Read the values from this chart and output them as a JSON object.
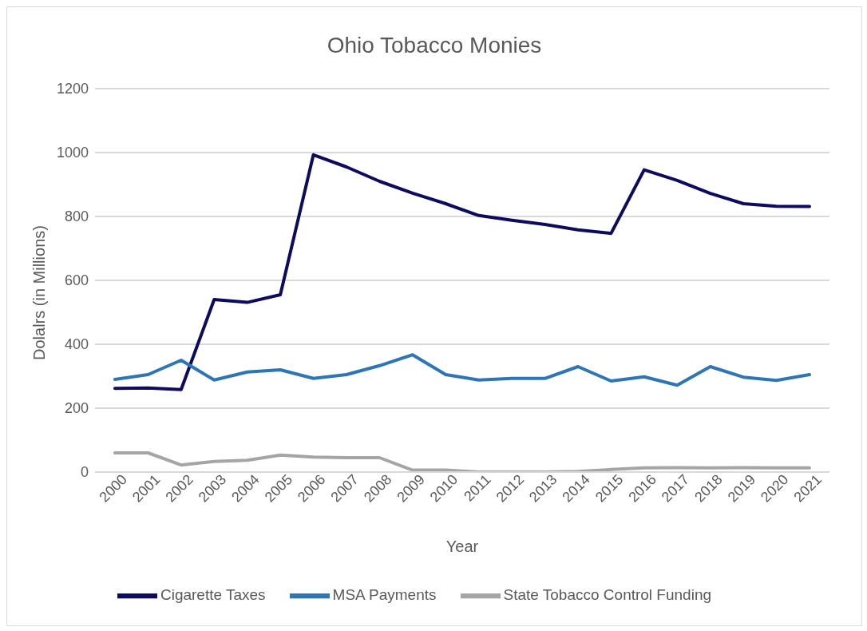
{
  "chart_data": {
    "type": "line",
    "title": "Ohio Tobacco Monies",
    "xlabel": "Year",
    "ylabel": "Dolalrs (in Millions)",
    "categories": [
      "2000",
      "2001",
      "2002",
      "2003",
      "2004",
      "2005",
      "2006",
      "2007",
      "2008",
      "2009",
      "2010",
      "2011",
      "2012",
      "2013",
      "2014",
      "2015",
      "2016",
      "2017",
      "2018",
      "2019",
      "2020",
      "2021"
    ],
    "series": [
      {
        "name": "Cigarette Taxes",
        "color": "#0d0b5e",
        "values": [
          262,
          263,
          258,
          540,
          531,
          555,
          993,
          955,
          910,
          873,
          840,
          803,
          788,
          775,
          758,
          747,
          946,
          913,
          872,
          840,
          832,
          831
        ]
      },
      {
        "name": "MSA Payments",
        "color": "#2e75b6",
        "values": [
          290,
          305,
          350,
          288,
          313,
          320,
          293,
          305,
          333,
          367,
          305,
          288,
          293,
          293,
          330,
          285,
          298,
          272,
          330,
          297,
          287,
          305
        ]
      },
      {
        "name": "State Tobacco Control Funding",
        "color": "#a5a5a5",
        "values": [
          60,
          60,
          22,
          33,
          37,
          53,
          47,
          45,
          45,
          6,
          6,
          0,
          0,
          0,
          2,
          8,
          13,
          14,
          13,
          14,
          13,
          13
        ]
      }
    ],
    "ylim": [
      0,
      1200
    ],
    "yticks": [
      0,
      200,
      400,
      600,
      800,
      1000,
      1200
    ],
    "grid": "y",
    "legend": "bottom",
    "marker": "none",
    "line_style": "solid"
  }
}
